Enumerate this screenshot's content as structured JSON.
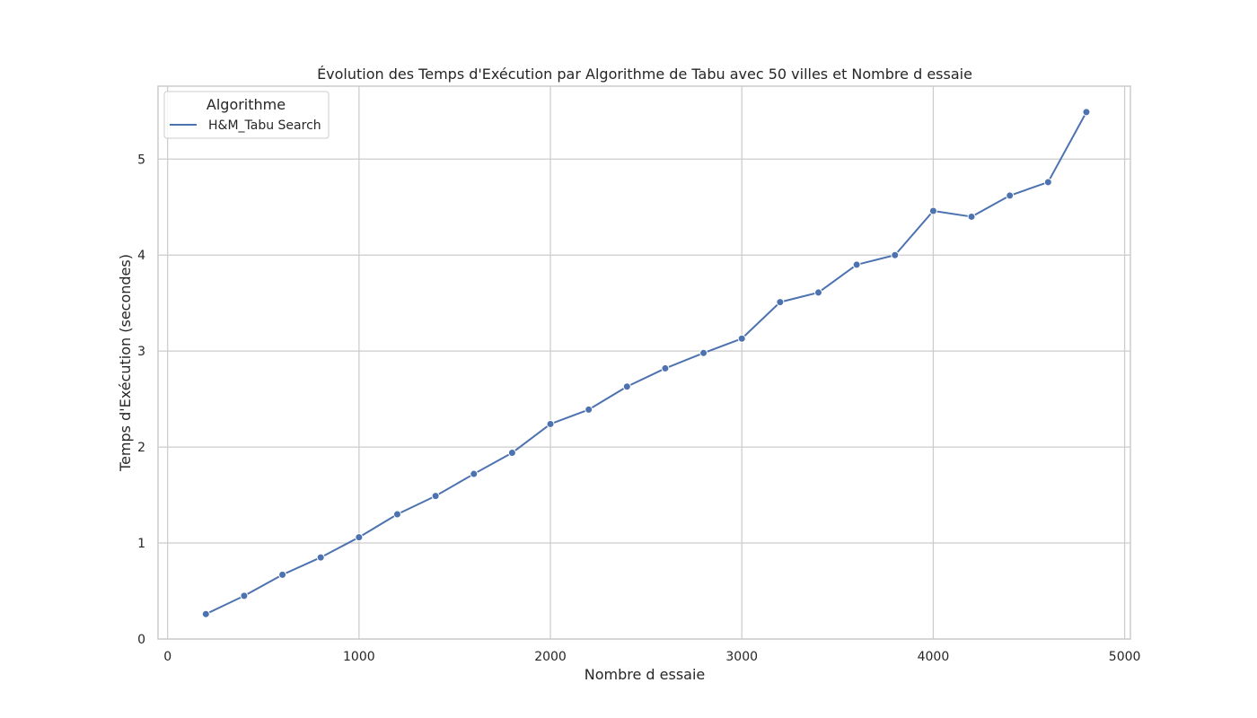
{
  "chart_data": {
    "type": "line",
    "title": "Évolution des Temps d'Exécution par Algorithme de Tabu avec 50 villes et Nombre d essaie",
    "xlabel": "Nombre d essaie",
    "ylabel": "Temps d'Exécution (secondes)",
    "xlim": [
      -50,
      5030
    ],
    "ylim": [
      0,
      5.76
    ],
    "xticks": [
      0,
      1000,
      2000,
      3000,
      4000,
      5000
    ],
    "yticks": [
      0,
      1,
      2,
      3,
      4,
      5
    ],
    "grid": true,
    "legend": {
      "title": "Algorithme",
      "placement": "top-left"
    },
    "colors": {
      "series": "#4c72b0",
      "grid": "#cccccc",
      "text": "#262626"
    },
    "x": [
      200,
      400,
      600,
      800,
      1000,
      1200,
      1400,
      1600,
      1800,
      2000,
      2200,
      2400,
      2600,
      2800,
      3000,
      3200,
      3400,
      3600,
      3800,
      4000,
      4200,
      4400,
      4600,
      4800
    ],
    "series": [
      {
        "name": "H&M_Tabu Search",
        "values": [
          0.26,
          0.45,
          0.67,
          0.85,
          1.06,
          1.3,
          1.49,
          1.72,
          1.94,
          2.24,
          2.39,
          2.63,
          2.82,
          2.98,
          3.13,
          3.51,
          3.61,
          3.9,
          4.0,
          4.46,
          4.4,
          4.62,
          4.76,
          5.49
        ]
      }
    ]
  }
}
